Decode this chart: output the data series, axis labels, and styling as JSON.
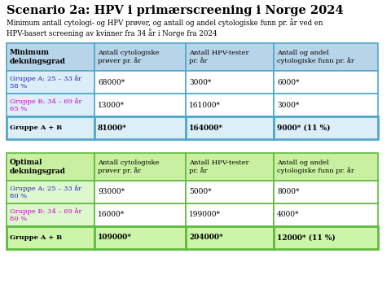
{
  "title": "Scenario 2a: HPV i primærscreening i Norge 2024",
  "subtitle": "Minimum antall cytologi- og HPV prøver, og antall og andel cytologiske funn pr. år ved en\nHPV-basert screening av kvinner fra 34 år i Norge fra 2024",
  "table1": {
    "header_col": "Minimum\ndekningsgrad",
    "header_bg": "#b8d4e8",
    "col_headers": [
      "Antall cytologiske\nprøver pr. år",
      "Antall HPV-tester\npr. år",
      "Antall og andel\ncytologiske funn pr. år"
    ],
    "rows": [
      {
        "label": "Gruppe A: 25 – 33 år\n58 %",
        "label_color": "#2020cc",
        "label_bg": "#ddeef8",
        "values": [
          "68000*",
          "3000*",
          "6000*"
        ],
        "value_bg": "#ffffff",
        "bold": false
      },
      {
        "label": "Gruppe B: 34 – 69 år\n65 %",
        "label_color": "#cc00cc",
        "label_bg": "#ddeef8",
        "values": [
          "13000*",
          "161000*",
          "3000*"
        ],
        "value_bg": "#ffffff",
        "bold": false
      },
      {
        "label": "Gruppe A + B",
        "label_color": "#000000",
        "label_bg": "#ddeef8",
        "values": [
          "81000*",
          "164000*",
          "9000* (11 %)"
        ],
        "value_bg": "#ddeef8",
        "bold": true
      }
    ]
  },
  "table2": {
    "header_col": "Optimal\ndekningsgrad",
    "header_bg": "#c8f0a0",
    "col_headers": [
      "Antall cytologiske\nprøver pr. år",
      "Antall HPV-tester\npr. år",
      "Antall og andel\ncytologiske funn pr. år"
    ],
    "rows": [
      {
        "label": "Gruppe A: 25 – 33 år\n80 %",
        "label_color": "#2020cc",
        "label_bg": "#ddf8cc",
        "values": [
          "93000*",
          "5000*",
          "8000*"
        ],
        "value_bg": "#ffffff",
        "bold": false
      },
      {
        "label": "Gruppe B: 34 – 69 år\n80 %",
        "label_color": "#cc00cc",
        "label_bg": "#ddf8cc",
        "values": [
          "16000*",
          "199000*",
          "4000*"
        ],
        "value_bg": "#ffffff",
        "bold": false
      },
      {
        "label": "Gruppe A + B",
        "label_color": "#000000",
        "label_bg": "#ccf5aa",
        "values": [
          "109000*",
          "204000*",
          "12000* (11 %)"
        ],
        "value_bg": "#ccf5aa",
        "bold": true
      }
    ]
  },
  "border_color1": "#50a8cc",
  "border_color2": "#60bb40",
  "title_color": "#000000",
  "subtitle_color": "#000000",
  "bg_color": "#ffffff"
}
